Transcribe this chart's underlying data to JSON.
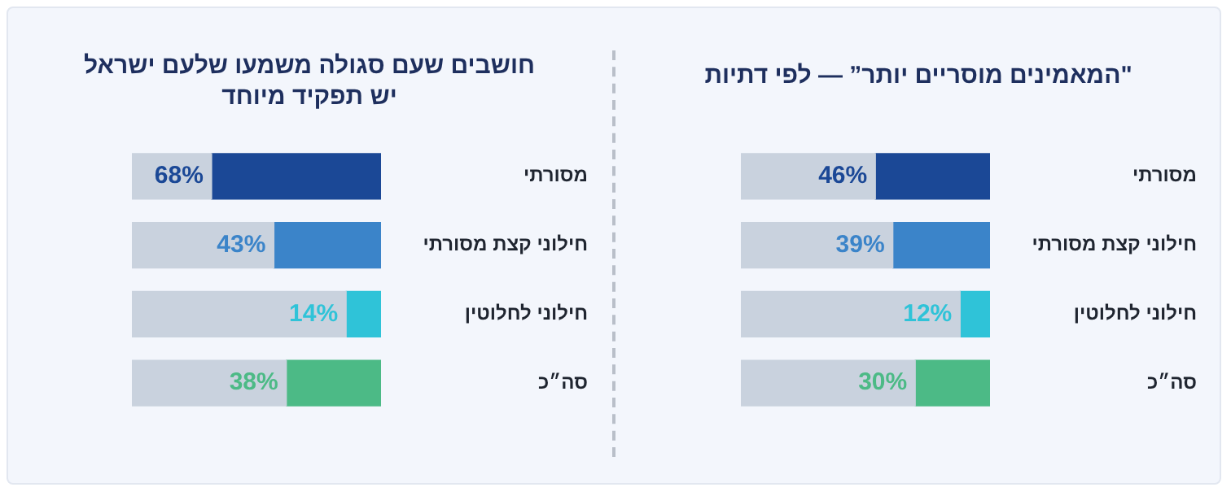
{
  "chart_data": [
    {
      "type": "bar",
      "title": "\"המאמינים מוסריים יותר” — לפי דתיות",
      "orientation": "horizontal",
      "stacked": true,
      "tick_labels": "y",
      "legend": false,
      "categories": [
        "מסורתי",
        "חילוני קצת מסורתי",
        "חילוני לחלוטין",
        "סה״כ"
      ],
      "series": [
        {
          "color": "#c9d2de",
          "values": [
            54,
            61,
            88,
            70
          ]
        },
        {
          "colors": [
            "#1b4896",
            "#3b84c9",
            "#2fc3d8",
            "#4cba86"
          ],
          "values": [
            46,
            39,
            12,
            30
          ],
          "value_labels": [
            "46%",
            "39%",
            "12%",
            "30%"
          ]
        }
      ]
    },
    {
      "type": "bar",
      "title": "חושבים שעם סגולה משמעו שלעם ישראל\nיש תפקיד מיוחד",
      "orientation": "horizontal",
      "stacked": true,
      "tick_labels": "y",
      "legend": false,
      "categories": [
        "מסורתי",
        "חילוני קצת מסורתי",
        "חילוני לחלוטין",
        "סה״כ"
      ],
      "series": [
        {
          "color": "#c9d2de",
          "values": [
            32,
            57,
            86,
            62
          ]
        },
        {
          "colors": [
            "#1b4896",
            "#3b84c9",
            "#2fc3d8",
            "#4cba86"
          ],
          "values": [
            68,
            43,
            14,
            38
          ],
          "value_labels": [
            "68%",
            "43%",
            "14%",
            "38%"
          ]
        }
      ]
    }
  ]
}
